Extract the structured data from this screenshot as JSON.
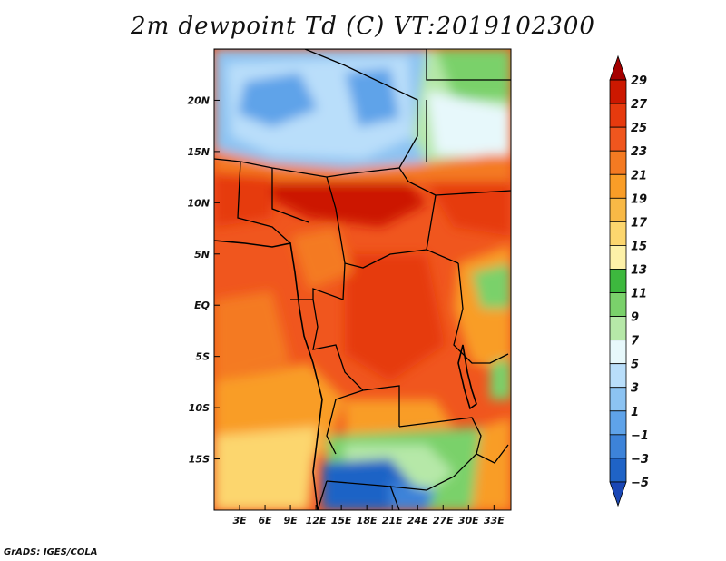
{
  "title": "2m dewpoint Td (C) VT:2019102300",
  "credit": "GrADS: IGES/COLA",
  "map": {
    "lat_range": [
      -20,
      25
    ],
    "lon_range": [
      0,
      35
    ],
    "y_ticks": [
      "20N",
      "15N",
      "10N",
      "5N",
      "EQ",
      "5S",
      "10S",
      "15S"
    ],
    "y_tick_values": [
      20,
      15,
      10,
      5,
      0,
      -5,
      -10,
      -15
    ],
    "x_ticks": [
      "3E",
      "6E",
      "9E",
      "12E",
      "15E",
      "18E",
      "21E",
      "24E",
      "27E",
      "30E",
      "33E"
    ],
    "x_tick_values": [
      3,
      6,
      9,
      12,
      15,
      18,
      21,
      24,
      27,
      30,
      33
    ]
  },
  "colorbar": {
    "labels": [
      "29",
      "27",
      "25",
      "23",
      "21",
      "19",
      "17",
      "15",
      "13",
      "11",
      "9",
      "7",
      "5",
      "3",
      "1",
      "−1",
      "−3",
      "−5"
    ],
    "colors": [
      "#a50000",
      "#cc1800",
      "#e63a0e",
      "#f0561e",
      "#f47a22",
      "#f99d27",
      "#f8b946",
      "#fcd66e",
      "#fdf1a8",
      "#3db83e",
      "#7ad16b",
      "#b6e8a8",
      "#e7f8fb",
      "#b9defa",
      "#8cc3f2",
      "#5fa3e9",
      "#3d83d9",
      "#1f63c6",
      "#1a47b5"
    ]
  }
}
